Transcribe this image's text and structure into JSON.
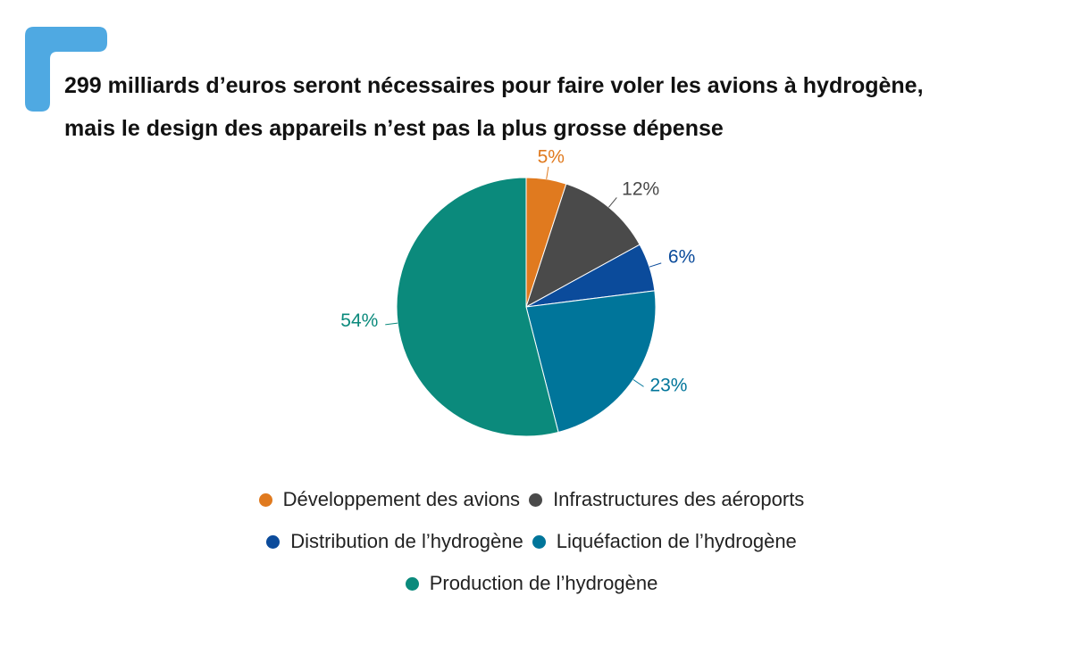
{
  "chart_data": {
    "type": "pie",
    "title": "299 milliards d’euros seront nécessaires pour faire voler les avions à hydrogène, mais le design des appareils n’est pas la plus grosse dépense",
    "categories": [
      "Développement des avions",
      "Infrastructures des aéroports",
      "Distribution de l’hydrogène",
      "Liquéfaction de l’hydrogène",
      "Production de l’hydrogène"
    ],
    "values": [
      5,
      12,
      6,
      23,
      54
    ],
    "value_labels": [
      "5%",
      "12%",
      "6%",
      "23%",
      "54%"
    ],
    "colors": [
      "#e07a1f",
      "#4a4a4a",
      "#0b4b9b",
      "#00759a",
      "#0b8a7c"
    ]
  }
}
